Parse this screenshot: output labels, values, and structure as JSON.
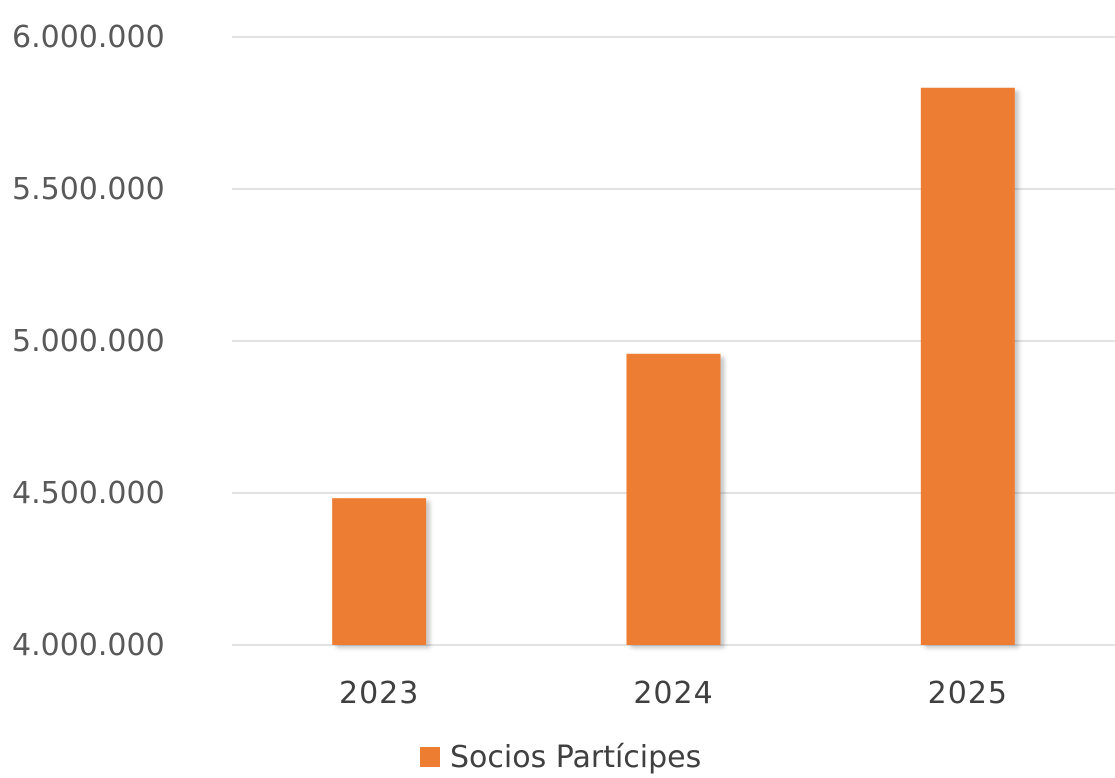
{
  "chart_data": {
    "type": "bar",
    "categories": [
      "2023",
      "2024",
      "2025"
    ],
    "series": [
      {
        "name": "Socios Partícipes",
        "values": [
          4483000,
          4958000,
          5833000
        ],
        "color": "#ED7D31"
      }
    ],
    "y_ticks": [
      "4.000.000",
      "4.500.000",
      "5.000.000",
      "5.500.000",
      "6.000.000"
    ],
    "ylim": [
      4000000,
      6000000
    ],
    "grid": true,
    "legend_position": "bottom-center",
    "gridline_color": "#D9D9D9"
  }
}
